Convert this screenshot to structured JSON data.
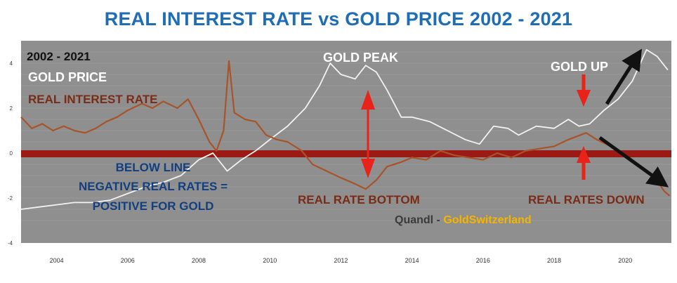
{
  "title": "REAL INTEREST RATE vs GOLD PRICE 2002 - 2021",
  "colors": {
    "plot_bg": "#8f8f8f",
    "gold_line": "#f2f2f2",
    "real_rate_line": "#a8542a",
    "zero_band": "#9b1b14",
    "red_arrow": "#e8231a",
    "black_arrow": "#111111",
    "blue_text": "#123f80",
    "brown_text": "#7a2b16",
    "orange_text": "#f5b400"
  },
  "annotations": {
    "period": "2002 - 2021",
    "gold_price": "GOLD PRICE",
    "real_interest_rate": "REAL INTEREST RATE",
    "gold_peak": "GOLD PEAK",
    "gold_up": "GOLD UP",
    "below_line_1": "BELOW LINE",
    "below_line_2": "NEGATIVE REAL RATES =",
    "below_line_3": "POSITIVE FOR GOLD",
    "real_rate_bottom": "REAL RATE BOTTOM",
    "real_rates_down": "REAL RATES DOWN",
    "source_1": "Quandl",
    "source_sep": " - ",
    "source_2": "GoldSwitzerland"
  },
  "chart_data": {
    "type": "line",
    "xlim": [
      2003,
      2021.3
    ],
    "ylim": [
      -4,
      5
    ],
    "x_ticks": [
      "2004",
      "2006",
      "2008",
      "2010",
      "2012",
      "2014",
      "2016",
      "2018",
      "2020"
    ],
    "x_tick_values": [
      2004,
      2006,
      2008,
      2010,
      2012,
      2014,
      2016,
      2018,
      2020
    ],
    "y_ticks": [
      "4",
      "2",
      "0",
      "-2",
      "-4"
    ],
    "y_tick_values": [
      4,
      2,
      0,
      -2,
      -4
    ],
    "series": [
      {
        "name": "REAL INTEREST RATE",
        "points": [
          [
            2003.0,
            1.6
          ],
          [
            2003.3,
            1.1
          ],
          [
            2003.6,
            1.3
          ],
          [
            2003.9,
            1.0
          ],
          [
            2004.2,
            1.2
          ],
          [
            2004.5,
            1.0
          ],
          [
            2004.8,
            0.9
          ],
          [
            2005.1,
            1.1
          ],
          [
            2005.4,
            1.4
          ],
          [
            2005.7,
            1.6
          ],
          [
            2006.0,
            1.9
          ],
          [
            2006.4,
            2.2
          ],
          [
            2006.7,
            2.0
          ],
          [
            2007.0,
            2.3
          ],
          [
            2007.4,
            2.0
          ],
          [
            2007.7,
            2.4
          ],
          [
            2008.0,
            1.5
          ],
          [
            2008.3,
            0.5
          ],
          [
            2008.5,
            0.1
          ],
          [
            2008.7,
            1.0
          ],
          [
            2008.85,
            4.1
          ],
          [
            2009.0,
            1.8
          ],
          [
            2009.3,
            1.5
          ],
          [
            2009.6,
            1.4
          ],
          [
            2009.9,
            0.8
          ],
          [
            2010.2,
            0.6
          ],
          [
            2010.5,
            0.5
          ],
          [
            2010.9,
            0.1
          ],
          [
            2011.2,
            -0.5
          ],
          [
            2011.6,
            -0.8
          ],
          [
            2012.0,
            -1.1
          ],
          [
            2012.3,
            -1.3
          ],
          [
            2012.7,
            -1.6
          ],
          [
            2013.0,
            -1.2
          ],
          [
            2013.3,
            -0.6
          ],
          [
            2013.7,
            -0.4
          ],
          [
            2014.0,
            -0.2
          ],
          [
            2014.4,
            -0.3
          ],
          [
            2014.8,
            0.1
          ],
          [
            2015.2,
            -0.1
          ],
          [
            2015.6,
            -0.2
          ],
          [
            2016.0,
            -0.3
          ],
          [
            2016.4,
            0.0
          ],
          [
            2016.8,
            -0.2
          ],
          [
            2017.2,
            0.1
          ],
          [
            2017.6,
            0.2
          ],
          [
            2018.0,
            0.3
          ],
          [
            2018.4,
            0.6
          ],
          [
            2018.9,
            0.9
          ],
          [
            2019.2,
            0.6
          ],
          [
            2019.6,
            0.3
          ],
          [
            2020.0,
            -0.1
          ],
          [
            2020.4,
            -0.6
          ],
          [
            2020.8,
            -1.0
          ],
          [
            2021.1,
            -1.7
          ],
          [
            2021.25,
            -1.9
          ]
        ]
      },
      {
        "name": "GOLD PRICE",
        "points": [
          [
            2003.0,
            -2.5
          ],
          [
            2003.5,
            -2.4
          ],
          [
            2004.0,
            -2.3
          ],
          [
            2004.5,
            -2.2
          ],
          [
            2005.0,
            -2.2
          ],
          [
            2005.5,
            -2.1
          ],
          [
            2006.0,
            -1.8
          ],
          [
            2006.5,
            -1.5
          ],
          [
            2007.0,
            -1.3
          ],
          [
            2007.5,
            -1.0
          ],
          [
            2008.0,
            -0.3
          ],
          [
            2008.4,
            0.0
          ],
          [
            2008.8,
            -0.8
          ],
          [
            2009.2,
            -0.3
          ],
          [
            2009.6,
            0.1
          ],
          [
            2010.0,
            0.6
          ],
          [
            2010.5,
            1.2
          ],
          [
            2011.0,
            2.0
          ],
          [
            2011.4,
            3.0
          ],
          [
            2011.7,
            4.0
          ],
          [
            2012.0,
            3.5
          ],
          [
            2012.4,
            3.3
          ],
          [
            2012.7,
            3.9
          ],
          [
            2013.0,
            3.6
          ],
          [
            2013.3,
            2.8
          ],
          [
            2013.7,
            1.6
          ],
          [
            2014.0,
            1.6
          ],
          [
            2014.5,
            1.4
          ],
          [
            2015.0,
            1.0
          ],
          [
            2015.5,
            0.6
          ],
          [
            2015.9,
            0.4
          ],
          [
            2016.3,
            1.2
          ],
          [
            2016.7,
            1.1
          ],
          [
            2017.0,
            0.8
          ],
          [
            2017.5,
            1.2
          ],
          [
            2018.0,
            1.1
          ],
          [
            2018.4,
            1.5
          ],
          [
            2018.7,
            1.2
          ],
          [
            2019.0,
            1.3
          ],
          [
            2019.4,
            1.9
          ],
          [
            2019.8,
            2.4
          ],
          [
            2020.2,
            3.2
          ],
          [
            2020.6,
            4.6
          ],
          [
            2020.9,
            4.3
          ],
          [
            2021.2,
            3.7
          ]
        ]
      }
    ]
  }
}
